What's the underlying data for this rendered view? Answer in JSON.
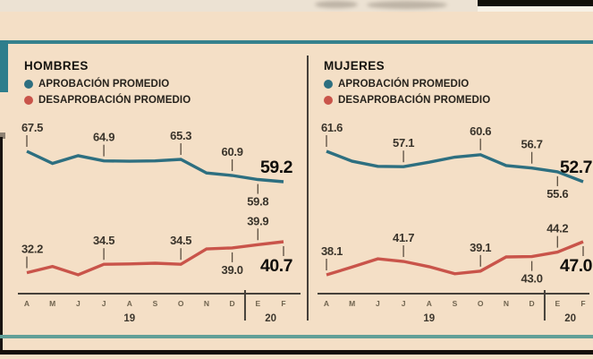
{
  "colors": {
    "background": "#f4dfc6",
    "approval": "#2d6f80",
    "disapproval": "#c9544a",
    "teal_rule": "#35818d",
    "bottom_teal_rule": "#619f97",
    "axis": "#46413a",
    "label_text": "#3a342b",
    "bold_text": "#0f0d0a"
  },
  "chart_data": [
    {
      "type": "line",
      "title": "HOMBRES",
      "legend_position": "top-left",
      "grid": false,
      "categories": [
        "A",
        "M",
        "J",
        "J",
        "A",
        "S",
        "O",
        "N",
        "D",
        "E",
        "F"
      ],
      "x_axis": {
        "year_groups": [
          {
            "label": "19",
            "from": 0,
            "to": 8
          },
          {
            "label": "20",
            "from": 9,
            "to": 10
          }
        ],
        "separator_after_index": 8
      },
      "series": [
        {
          "name": "APROBACIÓN PROMEDIO",
          "color": "#2d6f80",
          "values": [
            67.5,
            64.2,
            66.3,
            64.9,
            64.8,
            64.9,
            65.3,
            61.6,
            60.9,
            59.8,
            59.2
          ],
          "labeled_points": [
            {
              "index": 0,
              "text": "67.5",
              "side": "above"
            },
            {
              "index": 3,
              "text": "64.9",
              "side": "above"
            },
            {
              "index": 6,
              "text": "65.3",
              "side": "above"
            },
            {
              "index": 8,
              "text": "60.9",
              "side": "above"
            },
            {
              "index": 9,
              "text": "59.8",
              "side": "below"
            },
            {
              "index": 10,
              "text": "59.2",
              "side": "above",
              "bold": true
            }
          ]
        },
        {
          "name": "DESAPROBACIÓN PROMEDIO",
          "color": "#c9544a",
          "values": [
            32.2,
            33.9,
            31.6,
            34.5,
            34.6,
            34.8,
            34.5,
            38.7,
            39.0,
            39.9,
            40.7
          ],
          "labeled_points": [
            {
              "index": 0,
              "text": "32.2",
              "side": "above"
            },
            {
              "index": 3,
              "text": "34.5",
              "side": "above"
            },
            {
              "index": 6,
              "text": "34.5",
              "side": "above"
            },
            {
              "index": 8,
              "text": "39.0",
              "side": "below"
            },
            {
              "index": 9,
              "text": "39.9",
              "side": "above"
            },
            {
              "index": 10,
              "text": "40.7",
              "side": "below",
              "bold": true
            }
          ]
        }
      ]
    },
    {
      "type": "line",
      "title": "MUJERES",
      "legend_position": "top-left",
      "grid": false,
      "categories": [
        "A",
        "M",
        "J",
        "J",
        "A",
        "S",
        "O",
        "N",
        "D",
        "E",
        "F"
      ],
      "x_axis": {
        "year_groups": [
          {
            "label": "19",
            "from": 0,
            "to": 8
          },
          {
            "label": "20",
            "from": 9,
            "to": 10
          }
        ],
        "separator_after_index": 8
      },
      "series": [
        {
          "name": "APROBACIÓN PROMEDIO",
          "color": "#2d6f80",
          "values": [
            61.6,
            58.7,
            57.2,
            57.1,
            58.4,
            59.9,
            60.6,
            57.4,
            56.7,
            55.6,
            52.7
          ],
          "labeled_points": [
            {
              "index": 0,
              "text": "61.6",
              "side": "above"
            },
            {
              "index": 3,
              "text": "57.1",
              "side": "above"
            },
            {
              "index": 6,
              "text": "60.6",
              "side": "above"
            },
            {
              "index": 8,
              "text": "56.7",
              "side": "above"
            },
            {
              "index": 9,
              "text": "55.6",
              "side": "below"
            },
            {
              "index": 10,
              "text": "52.7",
              "side": "above",
              "bold": true
            }
          ]
        },
        {
          "name": "DESAPROBACIÓN PROMEDIO",
          "color": "#c9544a",
          "values": [
            38.1,
            40.2,
            42.4,
            41.7,
            40.3,
            38.4,
            39.1,
            42.9,
            43.0,
            44.2,
            47.0
          ],
          "labeled_points": [
            {
              "index": 0,
              "text": "38.1",
              "side": "above"
            },
            {
              "index": 3,
              "text": "41.7",
              "side": "above"
            },
            {
              "index": 6,
              "text": "39.1",
              "side": "above"
            },
            {
              "index": 8,
              "text": "43.0",
              "side": "below"
            },
            {
              "index": 9,
              "text": "44.2",
              "side": "above"
            },
            {
              "index": 10,
              "text": "47.0",
              "side": "below",
              "bold": true
            }
          ]
        }
      ]
    }
  ]
}
